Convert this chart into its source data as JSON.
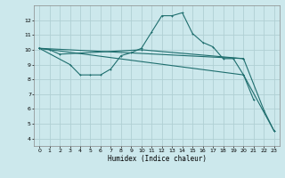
{
  "xlabel": "Humidex (Indice chaleur)",
  "bg_color": "#cce8ec",
  "grid_color": "#b0d0d4",
  "line_color": "#1e6e6e",
  "xlim": [
    -0.5,
    23.5
  ],
  "ylim": [
    3.5,
    13.0
  ],
  "x_ticks": [
    0,
    1,
    2,
    3,
    4,
    5,
    6,
    7,
    8,
    9,
    10,
    11,
    12,
    13,
    14,
    15,
    16,
    17,
    18,
    19,
    20,
    21,
    22,
    23
  ],
  "y_ticks": [
    4,
    5,
    6,
    7,
    8,
    9,
    10,
    11,
    12
  ],
  "line1": {
    "x": [
      0,
      1,
      2,
      10,
      20
    ],
    "y": [
      10.1,
      10.0,
      9.7,
      10.0,
      9.4
    ]
  },
  "line2": {
    "x": [
      0,
      3,
      4,
      5,
      6,
      7,
      8,
      9,
      10,
      11,
      12,
      13,
      14,
      15,
      16,
      17,
      18,
      19,
      20,
      21
    ],
    "y": [
      10.1,
      9.0,
      8.3,
      8.3,
      8.3,
      8.7,
      9.6,
      9.8,
      10.1,
      11.2,
      12.3,
      12.3,
      12.5,
      11.1,
      10.5,
      10.2,
      9.4,
      9.4,
      8.3,
      6.6
    ]
  },
  "line3": {
    "x": [
      0,
      20,
      22,
      23
    ],
    "y": [
      10.1,
      9.4,
      5.9,
      4.5
    ]
  },
  "line4": {
    "x": [
      0,
      20,
      23
    ],
    "y": [
      10.1,
      8.3,
      4.5
    ]
  }
}
